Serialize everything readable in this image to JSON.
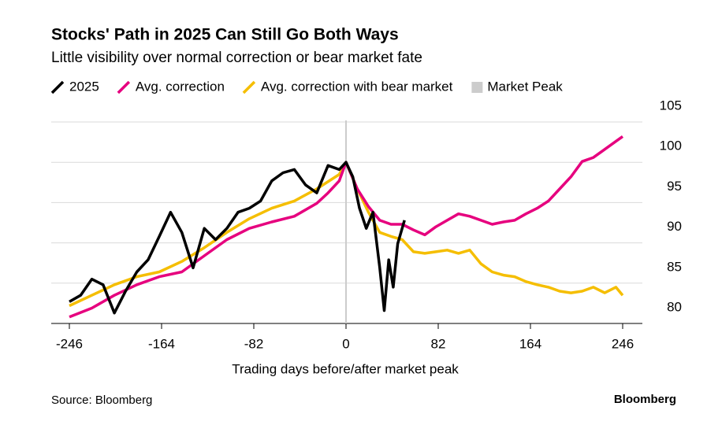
{
  "chart_data": {
    "type": "line",
    "title": "Stocks' Path in 2025 Can Still Go Both Ways",
    "subtitle": "Little visibility over normal correction or bear market fate",
    "x_label": "Trading days before/after market peak",
    "source": "Source: Bloomberg",
    "brand": "Bloomberg",
    "xlim": [
      -246,
      246
    ],
    "xticks": [
      -246,
      -164,
      -82,
      0,
      82,
      164,
      246
    ],
    "ylim": [
      80,
      105
    ],
    "yticks": [
      80,
      85,
      90,
      95,
      100,
      105
    ],
    "grid": true,
    "marker": {
      "name": "Market Peak",
      "x": 0,
      "color": "#cccccc"
    },
    "series": [
      {
        "name": "2025",
        "color": "#000000",
        "x": [
          -246,
          -236,
          -226,
          -216,
          -206,
          -196,
          -186,
          -176,
          -166,
          -156,
          -146,
          -136,
          -126,
          -116,
          -106,
          -96,
          -86,
          -76,
          -66,
          -56,
          -46,
          -36,
          -26,
          -16,
          -6,
          0,
          6,
          12,
          18,
          24,
          30,
          34,
          38,
          42,
          46,
          52
        ],
        "values": [
          82.7,
          83.5,
          85.5,
          84.8,
          81.3,
          84.0,
          86.4,
          87.9,
          90.8,
          93.8,
          91.3,
          86.9,
          91.8,
          90.4,
          91.8,
          93.8,
          94.3,
          95.2,
          97.7,
          98.7,
          99.1,
          97.2,
          96.2,
          99.6,
          99.1,
          100,
          98.2,
          94.3,
          91.8,
          93.8,
          86.9,
          81.6,
          87.9,
          84.5,
          89.9,
          92.8
        ]
      },
      {
        "name": "Avg. correction",
        "color": "#e6007e",
        "x": [
          -246,
          -226,
          -206,
          -186,
          -166,
          -146,
          -126,
          -106,
          -86,
          -66,
          -46,
          -26,
          -16,
          -6,
          0,
          10,
          20,
          30,
          40,
          50,
          60,
          70,
          80,
          90,
          100,
          110,
          120,
          130,
          140,
          150,
          160,
          170,
          180,
          190,
          200,
          210,
          220,
          230,
          240,
          246
        ],
        "values": [
          80.8,
          81.9,
          83.5,
          84.8,
          85.8,
          86.4,
          88.4,
          90.4,
          91.8,
          92.6,
          93.3,
          94.9,
          96.2,
          97.7,
          100,
          96.7,
          94.5,
          92.8,
          92.3,
          92.3,
          91.6,
          91.0,
          92.0,
          92.8,
          93.6,
          93.3,
          92.8,
          92.3,
          92.6,
          92.8,
          93.6,
          94.3,
          95.2,
          96.7,
          98.2,
          100.1,
          100.6,
          101.6,
          102.6,
          103.2
        ]
      },
      {
        "name": "Avg. correction with bear market",
        "color": "#f5be00",
        "x": [
          -246,
          -226,
          -206,
          -186,
          -166,
          -146,
          -126,
          -106,
          -86,
          -66,
          -46,
          -26,
          -6,
          0,
          10,
          20,
          30,
          40,
          50,
          60,
          70,
          80,
          90,
          100,
          110,
          120,
          130,
          140,
          150,
          160,
          170,
          180,
          190,
          200,
          210,
          220,
          230,
          240,
          246
        ],
        "values": [
          82.2,
          83.5,
          84.8,
          85.8,
          86.4,
          87.7,
          89.4,
          91.3,
          93.0,
          94.3,
          95.2,
          96.7,
          98.5,
          100,
          96.7,
          93.8,
          91.3,
          90.8,
          90.4,
          88.9,
          88.7,
          88.9,
          89.1,
          88.7,
          89.1,
          87.4,
          86.4,
          86.0,
          85.8,
          85.2,
          84.8,
          84.5,
          84.0,
          83.8,
          84.0,
          84.5,
          83.8,
          84.5,
          83.5
        ]
      }
    ]
  }
}
